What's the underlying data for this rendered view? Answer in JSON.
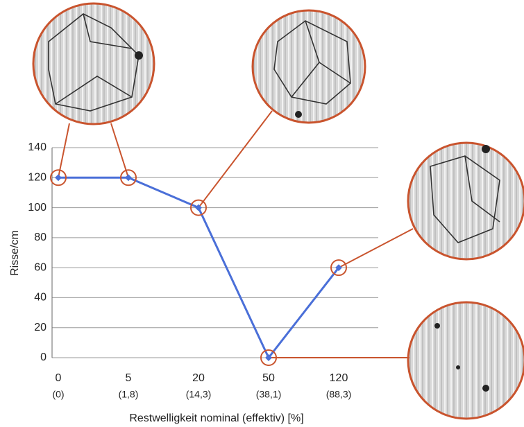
{
  "chart_data": {
    "type": "line",
    "categories": [
      "0",
      "5",
      "20",
      "50",
      "120"
    ],
    "categories_effective": [
      "(0)",
      "(1,8)",
      "(14,3)",
      "(38,1)",
      "(88,3)"
    ],
    "values": [
      120,
      120,
      100,
      0,
      60
    ],
    "color": "#4a6fd8",
    "highlight_color": "#c9542e",
    "y_label": "Risse/cm",
    "x_label": "Restwelligkeit nominal (effektiv) [%]",
    "ylim": [
      0,
      140
    ],
    "yticks": [
      0,
      20,
      40,
      60,
      80,
      100,
      120,
      140
    ],
    "grid": true
  }
}
